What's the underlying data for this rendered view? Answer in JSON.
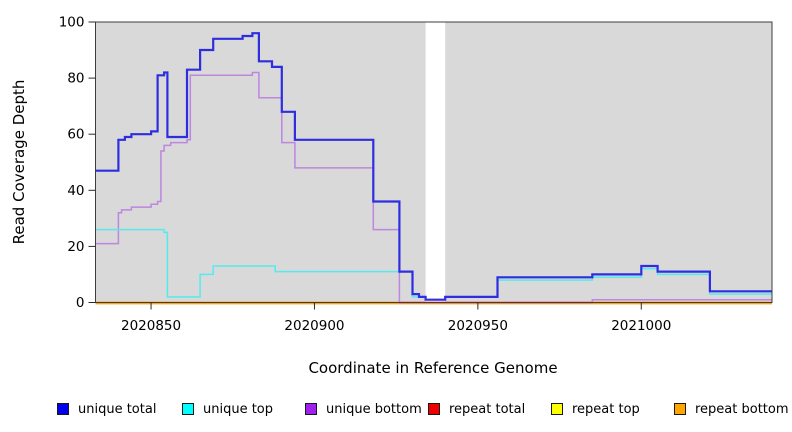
{
  "figure": {
    "x_axis_title": "Coordinate in Reference Genome",
    "y_axis_title": "Read Coverage Depth"
  },
  "legend": {
    "items": [
      {
        "label": "unique total",
        "color": "#0000ee"
      },
      {
        "label": "unique top",
        "color": "#00ffff"
      },
      {
        "label": "unique bottom",
        "color": "#a020f0"
      },
      {
        "label": "repeat total",
        "color": "#ee0000"
      },
      {
        "label": "repeat top",
        "color": "#ffff00"
      },
      {
        "label": "repeat bottom",
        "color": "#ffa500"
      }
    ]
  },
  "chart_data": {
    "type": "line",
    "step": true,
    "title": "",
    "xlabel": "Coordinate in Reference Genome",
    "ylabel": "Read Coverage Depth",
    "xlim": [
      2020833,
      2021040
    ],
    "ylim": [
      0,
      100
    ],
    "x_ticks": [
      2020850,
      2020900,
      2020950,
      2021000
    ],
    "y_ticks": [
      0,
      20,
      40,
      60,
      80,
      100
    ],
    "grid": false,
    "legend_position": "bottom",
    "plot_bg": "#d9d9d9",
    "gap_region": {
      "x": [
        2020934,
        2020940
      ],
      "color": "#ffffff"
    },
    "series": [
      {
        "name": "unique total",
        "color": "#2e2ee0",
        "width": 2.2,
        "points": [
          [
            2020833,
            47
          ],
          [
            2020840,
            58
          ],
          [
            2020842,
            59
          ],
          [
            2020844,
            60
          ],
          [
            2020850,
            61
          ],
          [
            2020852,
            81
          ],
          [
            2020854,
            82
          ],
          [
            2020855,
            59
          ],
          [
            2020861,
            83
          ],
          [
            2020865,
            90
          ],
          [
            2020869,
            94
          ],
          [
            2020878,
            95
          ],
          [
            2020881,
            96
          ],
          [
            2020883,
            86
          ],
          [
            2020887,
            84
          ],
          [
            2020890,
            68
          ],
          [
            2020894,
            58
          ],
          [
            2020918,
            36
          ],
          [
            2020926,
            11
          ],
          [
            2020930,
            3
          ],
          [
            2020932,
            2
          ],
          [
            2020934,
            1
          ],
          [
            2020940,
            2
          ],
          [
            2020956,
            9
          ],
          [
            2020985,
            10
          ],
          [
            2021000,
            13
          ],
          [
            2021005,
            11
          ],
          [
            2021021,
            4
          ],
          [
            2021040,
            4
          ]
        ]
      },
      {
        "name": "unique top",
        "color": "#55eaee",
        "width": 1.5,
        "points": [
          [
            2020833,
            26
          ],
          [
            2020854,
            25
          ],
          [
            2020855,
            2
          ],
          [
            2020865,
            10
          ],
          [
            2020869,
            13
          ],
          [
            2020888,
            11
          ],
          [
            2020930,
            2
          ],
          [
            2020934,
            1
          ],
          [
            2020940,
            2
          ],
          [
            2020956,
            8
          ],
          [
            2020985,
            9
          ],
          [
            2021000,
            12
          ],
          [
            2021005,
            10
          ],
          [
            2021021,
            3
          ],
          [
            2021040,
            3
          ]
        ]
      },
      {
        "name": "unique bottom",
        "color": "#bd86e0",
        "width": 1.5,
        "points": [
          [
            2020833,
            21
          ],
          [
            2020840,
            32
          ],
          [
            2020841,
            33
          ],
          [
            2020844,
            34
          ],
          [
            2020850,
            35
          ],
          [
            2020852,
            36
          ],
          [
            2020853,
            54
          ],
          [
            2020854,
            56
          ],
          [
            2020856,
            57
          ],
          [
            2020861,
            58
          ],
          [
            2020862,
            81
          ],
          [
            2020881,
            82
          ],
          [
            2020883,
            73
          ],
          [
            2020890,
            57
          ],
          [
            2020894,
            48
          ],
          [
            2020918,
            26
          ],
          [
            2020926,
            0
          ],
          [
            2020985,
            1
          ],
          [
            2021040,
            1
          ]
        ]
      },
      {
        "name": "repeat total",
        "color": "#e0558f",
        "width": 1.5,
        "points": [
          [
            2020833,
            0
          ],
          [
            2021040,
            0
          ]
        ],
        "visible_overlay": [
          2020926,
          2020985
        ]
      },
      {
        "name": "repeat top",
        "color": "#ffff00",
        "width": 1.5,
        "points": [
          [
            2020833,
            0
          ],
          [
            2021040,
            0
          ]
        ]
      },
      {
        "name": "repeat bottom",
        "color": "#ffa500",
        "width": 1.8,
        "points": [
          [
            2020833,
            0
          ],
          [
            2021040,
            0
          ]
        ]
      }
    ]
  }
}
